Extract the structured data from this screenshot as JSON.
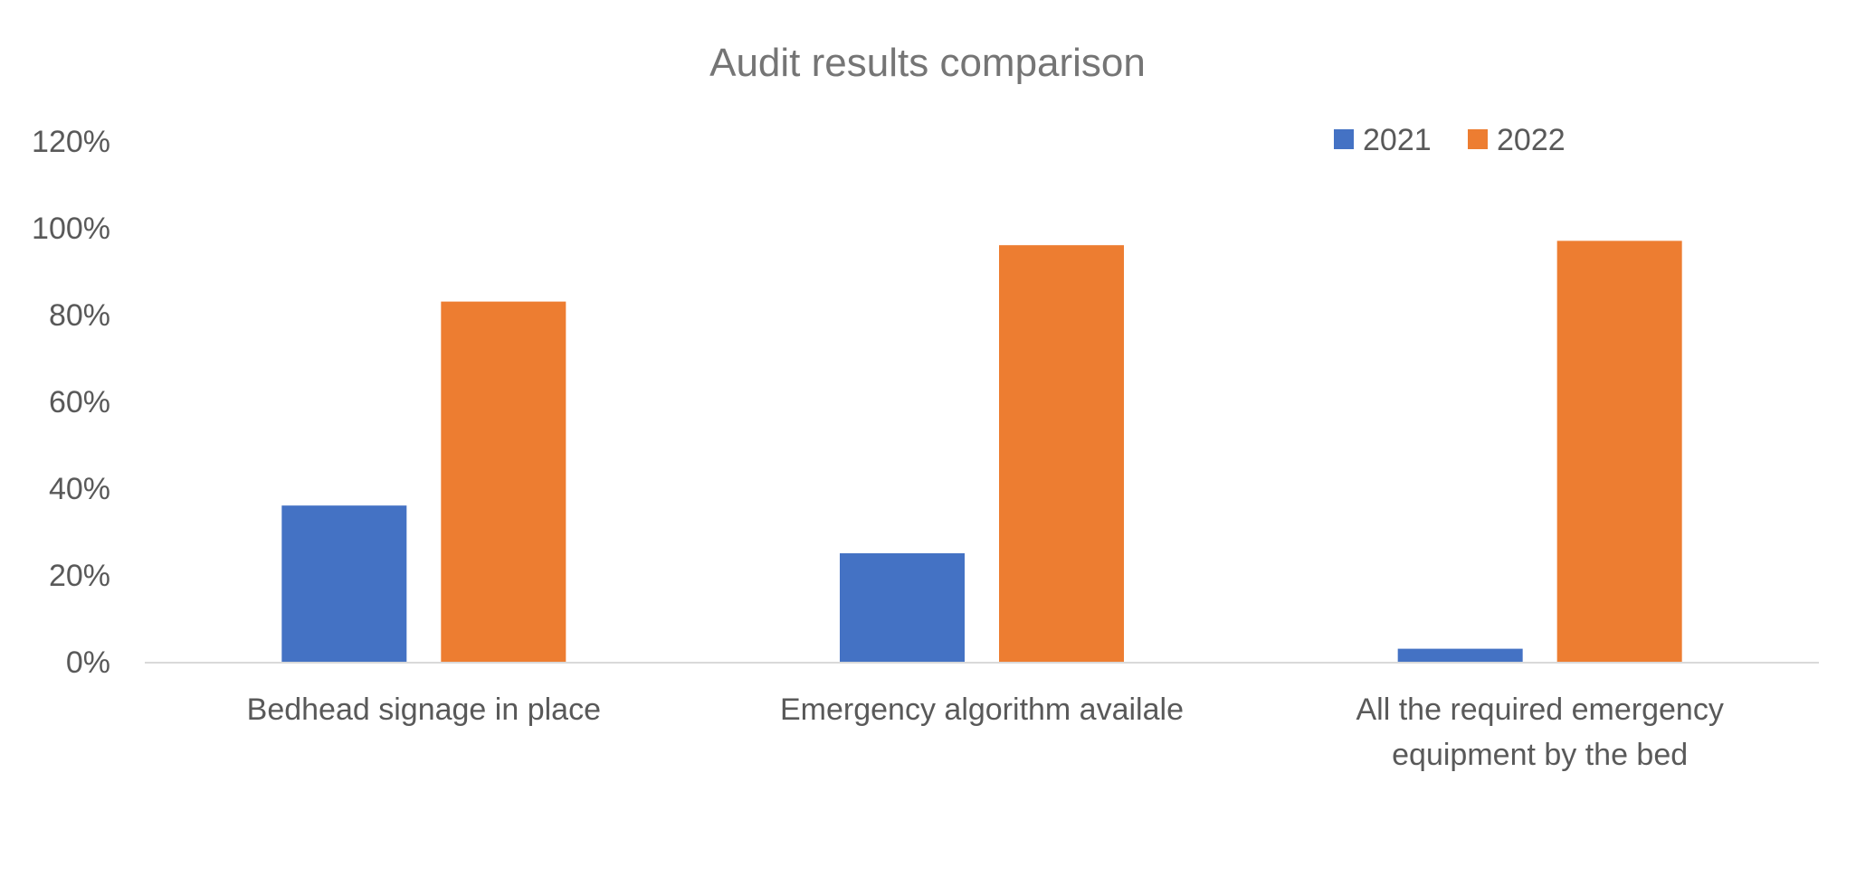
{
  "chart_data": {
    "type": "bar",
    "title": "Audit results comparison",
    "xlabel": "",
    "ylabel": "",
    "categories": [
      [
        "Bedhead signage in place"
      ],
      [
        "Emergency algorithm availale"
      ],
      [
        "All the required emergency",
        "equipment by the bed"
      ]
    ],
    "series": [
      {
        "name": "2021",
        "color": "#4472C4",
        "values": [
          0.36,
          0.25,
          0.03
        ]
      },
      {
        "name": "2022",
        "color": "#ED7D31",
        "values": [
          0.83,
          0.96,
          0.97
        ]
      }
    ],
    "ylim": [
      0,
      1.2
    ],
    "yticks": [
      0,
      0.2,
      0.4,
      0.6,
      0.8,
      1.0,
      1.2
    ],
    "ytick_labels": [
      "0%",
      "20%",
      "40%",
      "60%",
      "80%",
      "100%",
      "120%"
    ],
    "grid": false,
    "legend_position": "top-right",
    "axis_color": "#D9D9D9"
  }
}
